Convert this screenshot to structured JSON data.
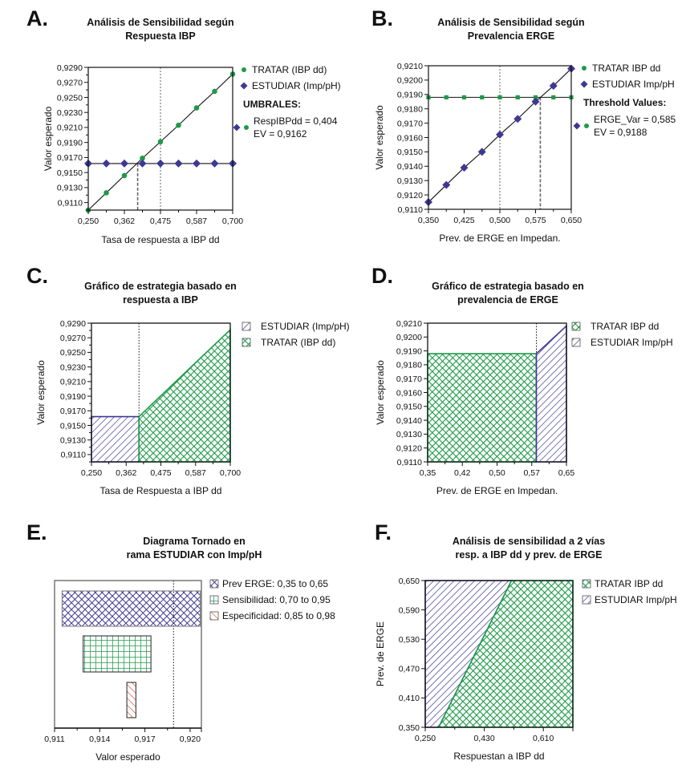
{
  "colors": {
    "green": "#1e9a48",
    "purple": "#3f3893",
    "red": "#e2452c",
    "line": "#111111",
    "dash": "#777777"
  },
  "chart_data": [
    {
      "id": "A",
      "panel": "A.",
      "type": "line",
      "title": [
        "Análisis de Sensibilidad según",
        "Respuesta IBP"
      ],
      "xlabel": "Tasa de respuesta a IBP dd",
      "ylabel": "Valor esperado",
      "xlim": [
        0.25,
        0.7
      ],
      "ylim": [
        0.91,
        0.929
      ],
      "xticks": [
        0.25,
        0.3625,
        0.475,
        0.5875,
        0.7
      ],
      "xtick_labels": [
        "0,250",
        "0,362",
        "0,475",
        "0,587",
        "0,700"
      ],
      "yticks": [
        0.911,
        0.913,
        0.915,
        0.917,
        0.919,
        0.921,
        0.923,
        0.925,
        0.927,
        0.929
      ],
      "ytick_labels": [
        "0,9110",
        "0,9130",
        "0,9150",
        "0,9170",
        "0,9190",
        "0,9210",
        "0,9230",
        "0,9250",
        "0,9270",
        "0,9290"
      ],
      "x": [
        0.25,
        0.30625,
        0.3625,
        0.41875,
        0.475,
        0.53125,
        0.5875,
        0.64375,
        0.7
      ],
      "series": [
        {
          "name": "TRATAR (IBP dd)",
          "marker": "circle",
          "color": "#1e9a48",
          "values": [
            0.91,
            0.9123,
            0.9146,
            0.9169,
            0.9191,
            0.9213,
            0.9236,
            0.9258,
            0.9281
          ]
        },
        {
          "name": "ESTUDIAR (Imp/pH)",
          "marker": "diamond",
          "color": "#3f3893",
          "values": [
            0.9162,
            0.9162,
            0.9162,
            0.9162,
            0.9162,
            0.9162,
            0.9162,
            0.9162,
            0.9162
          ]
        }
      ],
      "threshold_x": 0.404,
      "threshold_ev": 0.9162,
      "reference_x": 0.475,
      "legend": {
        "items": [
          "TRATAR (IBP dd)",
          "ESTUDIAR (Imp/pH)"
        ],
        "threshold_header": "UMBRALES:",
        "threshold_lines": [
          "RespIBPdd = 0,404",
          "EV = 0,9162"
        ],
        "position": "right"
      }
    },
    {
      "id": "B",
      "panel": "B.",
      "type": "line",
      "title": [
        "Análisis de Sensibilidad según",
        "Prevalencia ERGE"
      ],
      "xlabel": "Prev. de ERGE en Impedan.",
      "ylabel": "Valor esperado",
      "xlim": [
        0.35,
        0.65
      ],
      "ylim": [
        0.911,
        0.921
      ],
      "xticks": [
        0.35,
        0.425,
        0.5,
        0.575,
        0.65
      ],
      "xtick_labels": [
        "0,350",
        "0,425",
        "0,500",
        "0,575",
        "0,650"
      ],
      "yticks": [
        0.911,
        0.912,
        0.913,
        0.914,
        0.915,
        0.916,
        0.917,
        0.918,
        0.919,
        0.92,
        0.921
      ],
      "ytick_labels": [
        "0,9110",
        "0,9120",
        "0,9130",
        "0,9140",
        "0,9150",
        "0,9160",
        "0,9170",
        "0,9180",
        "0,9190",
        "0,9200",
        "0,9210"
      ],
      "x": [
        0.35,
        0.3875,
        0.425,
        0.4625,
        0.5,
        0.5375,
        0.575,
        0.6125,
        0.65
      ],
      "series": [
        {
          "name": "TRATAR IBP dd",
          "marker": "square",
          "color": "#1e9a48",
          "values": [
            0.9188,
            0.9188,
            0.9188,
            0.9188,
            0.9188,
            0.9188,
            0.9188,
            0.9188,
            0.9188
          ]
        },
        {
          "name": "ESTUDIAR Imp/pH",
          "marker": "diamond",
          "color": "#3f3893",
          "values": [
            0.9115,
            0.9127,
            0.9139,
            0.915,
            0.9162,
            0.9173,
            0.9185,
            0.9196,
            0.9208
          ]
        }
      ],
      "threshold_x": 0.585,
      "threshold_ev": 0.9188,
      "reference_x": 0.5,
      "legend": {
        "items": [
          "TRATAR IBP dd",
          "ESTUDIAR Imp/pH"
        ],
        "threshold_header": "Threshold Values:",
        "threshold_lines": [
          "ERGE_Var = 0,585",
          "EV = 0,9188"
        ],
        "position": "right"
      }
    },
    {
      "id": "C",
      "panel": "C.",
      "type": "area",
      "title": [
        "Gráfico de estrategia basado en",
        "respuesta a IBP"
      ],
      "xlabel": "Tasa de Respuesta a IBP dd",
      "ylabel": "Valor esperado",
      "xlim": [
        0.25,
        0.7
      ],
      "ylim": [
        0.91,
        0.929
      ],
      "xticks": [
        0.25,
        0.3625,
        0.475,
        0.5875,
        0.7
      ],
      "xtick_labels": [
        "0,250",
        "0,362",
        "0,475",
        "0,587",
        "0,700"
      ],
      "yticks": [
        0.911,
        0.913,
        0.915,
        0.917,
        0.919,
        0.921,
        0.923,
        0.925,
        0.927,
        0.929
      ],
      "ytick_labels": [
        "0,9110",
        "0,9130",
        "0,9150",
        "0,9170",
        "0,9190",
        "0,9210",
        "0,9230",
        "0,9250",
        "0,9270",
        "0,9290"
      ],
      "regions": [
        {
          "name": "ESTUDIAR (Imp/pH)",
          "pattern": "diag",
          "color": "#3f3893",
          "points": [
            [
              0.25,
              0.91
            ],
            [
              0.25,
              0.9162
            ],
            [
              0.404,
              0.9162
            ],
            [
              0.404,
              0.91
            ]
          ]
        },
        {
          "name": "TRATAR (IBP dd)",
          "pattern": "cross",
          "color": "#1e9a48",
          "points": [
            [
              0.404,
              0.91
            ],
            [
              0.404,
              0.9162
            ],
            [
              0.7,
              0.9281
            ],
            [
              0.7,
              0.91
            ]
          ]
        }
      ],
      "reference_x": 0.404,
      "legend": {
        "items": [
          "ESTUDIAR (Imp/pH)",
          "TRATAR (IBP dd)"
        ],
        "position": "right"
      }
    },
    {
      "id": "D",
      "panel": "D.",
      "type": "area",
      "title": [
        "Gráfico de estrategia basado en",
        "prevalencia de ERGE"
      ],
      "xlabel": "Prev. de ERGE en Impedan.",
      "ylabel": "Valor esperado",
      "xlim": [
        0.35,
        0.65
      ],
      "ylim": [
        0.911,
        0.921
      ],
      "xticks": [
        0.35,
        0.425,
        0.5,
        0.575,
        0.65
      ],
      "xtick_labels": [
        "0,35",
        "0,42",
        "0,50",
        "0,57",
        "0,65"
      ],
      "yticks": [
        0.911,
        0.912,
        0.913,
        0.914,
        0.915,
        0.916,
        0.917,
        0.918,
        0.919,
        0.92,
        0.921
      ],
      "ytick_labels": [
        "0,9110",
        "0,9120",
        "0,9130",
        "0,9140",
        "0,9150",
        "0,9160",
        "0,9170",
        "0,9180",
        "0,9190",
        "0,9200",
        "0,9210"
      ],
      "regions": [
        {
          "name": "TRATAR IBP dd",
          "pattern": "cross",
          "color": "#1e9a48",
          "points": [
            [
              0.35,
              0.911
            ],
            [
              0.35,
              0.9188
            ],
            [
              0.585,
              0.9188
            ],
            [
              0.585,
              0.911
            ]
          ]
        },
        {
          "name": "ESTUDIAR Imp/pH",
          "pattern": "diag",
          "color": "#3f3893",
          "points": [
            [
              0.585,
              0.911
            ],
            [
              0.585,
              0.9188
            ],
            [
              0.65,
              0.9208
            ],
            [
              0.65,
              0.911
            ]
          ]
        }
      ],
      "reference_x": 0.585,
      "legend": {
        "items": [
          "TRATAR IBP dd",
          "ESTUDIAR Imp/pH"
        ],
        "position": "right"
      }
    },
    {
      "id": "E",
      "panel": "E.",
      "type": "bar",
      "orientation": "horizontal",
      "title": [
        "Diagrama Tornado en",
        "rama ESTUDIAR con Imp/pH"
      ],
      "xlabel": "Valor esperado",
      "ylabel": "",
      "xlim": [
        0.911,
        0.92075
      ],
      "xticks": [
        0.911,
        0.914,
        0.917,
        0.92
      ],
      "xtick_labels": [
        "0,911",
        "0,914",
        "0,917",
        "0,920"
      ],
      "bars": [
        {
          "name": "Prev ERGE: 0,35 to 0,65",
          "low": 0.9115,
          "high": 0.92068,
          "pattern": "cross",
          "color": "#3f3893"
        },
        {
          "name": "Sensibilidad: 0,70 to 0,95",
          "low": 0.9129,
          "high": 0.9174,
          "pattern": "grid",
          "color": "#1e9a48"
        },
        {
          "name": "Especificidad: 0,85 to 0,98",
          "low": 0.9158,
          "high": 0.9164,
          "pattern": "diag-rev",
          "color": "#e2452c"
        }
      ],
      "reference_x": 0.9189,
      "legend": {
        "items": [
          "Prev ERGE: 0,35 to 0,65",
          "Sensibilidad: 0,70 to 0,95",
          "Especificidad: 0,85 to 0,98"
        ],
        "position": "right"
      }
    },
    {
      "id": "F",
      "panel": "F.",
      "type": "area",
      "title": [
        "Análisis de sensibilidad a 2 vías",
        "resp. a IBP dd y prev. de ERGE"
      ],
      "xlabel": "Respuestan a IBP dd",
      "ylabel": "Prev. de ERGE",
      "xlim": [
        0.25,
        0.7
      ],
      "ylim": [
        0.35,
        0.65
      ],
      "xticks": [
        0.25,
        0.43,
        0.61
      ],
      "xtick_labels": [
        "0,250",
        "0,430",
        "0,610"
      ],
      "yticks": [
        0.35,
        0.41,
        0.47,
        0.53,
        0.59,
        0.65
      ],
      "ytick_labels": [
        "0,350",
        "0,410",
        "0,470",
        "0,530",
        "0,590",
        "0,650"
      ],
      "regions": [
        {
          "name": "ESTUDIAR Imp/pH",
          "pattern": "diag",
          "color": "#3f3893",
          "points": [
            [
              0.25,
              0.35
            ],
            [
              0.25,
              0.65
            ],
            [
              0.513,
              0.65
            ],
            [
              0.291,
              0.35
            ]
          ]
        },
        {
          "name": "TRATAR IBP dd",
          "pattern": "cross",
          "color": "#1e9a48",
          "points": [
            [
              0.291,
              0.35
            ],
            [
              0.513,
              0.65
            ],
            [
              0.7,
              0.65
            ],
            [
              0.7,
              0.35
            ]
          ]
        }
      ],
      "boundary": [
        [
          0.291,
          0.35
        ],
        [
          0.513,
          0.65
        ]
      ],
      "legend": {
        "items": [
          "TRATAR IBP dd",
          "ESTUDIAR Imp/pH"
        ],
        "position": "right"
      }
    }
  ]
}
